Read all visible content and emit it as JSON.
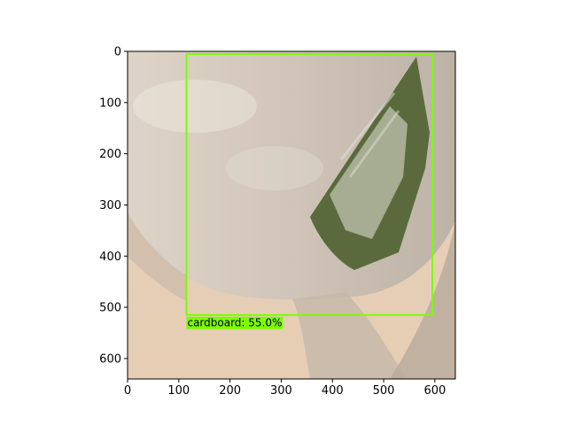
{
  "image": {
    "description_free": true,
    "x_ticks": [
      "0",
      "100",
      "200",
      "300",
      "400",
      "500",
      "600"
    ],
    "y_ticks": [
      "0",
      "100",
      "200",
      "300",
      "400",
      "500",
      "600"
    ],
    "image_size": [
      640,
      640
    ]
  },
  "detection": {
    "label": "cardboard: 55.0%",
    "box_color": "#7cfc00",
    "box": {
      "x_min": 115,
      "y_min": 5,
      "x_max": 595,
      "y_max": 515
    }
  }
}
